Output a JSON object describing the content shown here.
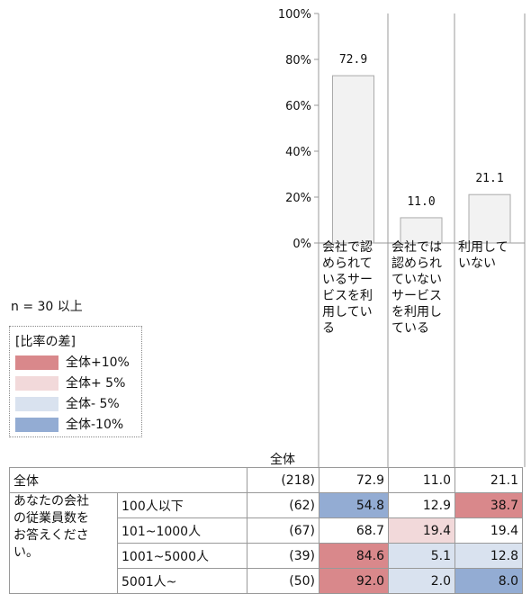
{
  "chart_data": {
    "type": "bar",
    "categories": [
      "会社で認\nめられて\nいるサー\nビスを利\n用してい\nる",
      "会社では\n認められ\nていない\nサービス\nを利用し\nている",
      "利用して\nいない"
    ],
    "values": [
      72.9,
      11.0,
      21.1
    ],
    "value_labels": [
      "72.9",
      "11.0",
      "21.1"
    ],
    "yticks": [
      "0%",
      "20%",
      "40%",
      "60%",
      "80%",
      "100%"
    ],
    "ylim": [
      0,
      100
    ],
    "bar_color": "#f2f2f2",
    "bar_border": "#aaaaaa"
  },
  "n_label": "n = 30 以上",
  "legend": {
    "title": "[比率の差]",
    "items": [
      {
        "label": "全体+10%",
        "color": "#d9888b"
      },
      {
        "label": "全体+ 5%",
        "color": "#f2d9da"
      },
      {
        "label": "全体- 5%",
        "color": "#d9e2ef"
      },
      {
        "label": "全体-10%",
        "color": "#93acd3"
      }
    ]
  },
  "table": {
    "total_header": "全体",
    "total_row": {
      "label": "全体",
      "n": "(218)",
      "values": [
        "72.9",
        "11.0",
        "21.1"
      ]
    },
    "group_label": "あなたの会社\nの従業員数を\nお答えくださ\nい。",
    "rows": [
      {
        "label": "100人以下",
        "n": "(62)",
        "values": [
          "54.8",
          "12.9",
          "38.7"
        ],
        "colors": [
          "#93acd3",
          "",
          "#d9888b"
        ]
      },
      {
        "label": "101~1000人",
        "n": "(67)",
        "values": [
          "68.7",
          "19.4",
          "19.4"
        ],
        "colors": [
          "",
          "#f2d9da",
          ""
        ]
      },
      {
        "label": "1001~5000人",
        "n": "(39)",
        "values": [
          "84.6",
          "5.1",
          "12.8"
        ],
        "colors": [
          "#d9888b",
          "#d9e2ef",
          "#d9e2ef"
        ]
      },
      {
        "label": "5001人~",
        "n": "(50)",
        "values": [
          "92.0",
          "2.0",
          "8.0"
        ],
        "colors": [
          "#d9888b",
          "#d9e2ef",
          "#93acd3"
        ]
      }
    ]
  }
}
